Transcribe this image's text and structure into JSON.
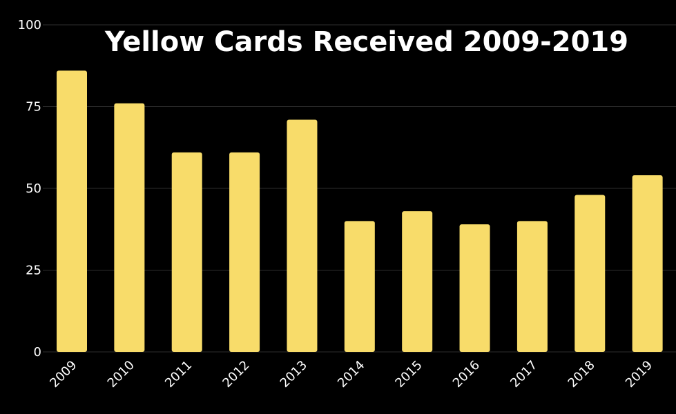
{
  "chart_data": {
    "type": "bar",
    "title": "Yellow Cards Received 2009-2019",
    "xlabel": "",
    "ylabel": "",
    "categories": [
      "2009",
      "2010",
      "2011",
      "2012",
      "2013",
      "2014",
      "2015",
      "2016",
      "2017",
      "2018",
      "2019"
    ],
    "values": [
      86,
      76,
      61,
      61,
      71,
      40,
      43,
      39,
      40,
      48,
      54
    ],
    "ylim": [
      0,
      100
    ],
    "yticks": [
      "0",
      "25",
      "50",
      "75",
      "100"
    ],
    "grid": true,
    "colors": {
      "background": "#000000",
      "bar": "#f8dc6a",
      "text": "#ffffff",
      "grid": "#2e2e2e"
    }
  }
}
